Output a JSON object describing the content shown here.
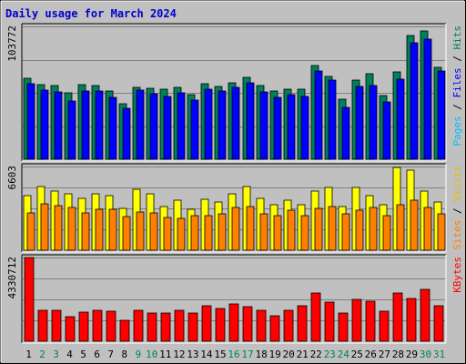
{
  "title": "Daily usage for March 2024",
  "colors": {
    "background": "#c0c0c0",
    "title": "#0000cc",
    "hits": "#00805c",
    "files": "#0000ff",
    "pages": "#00c0ff",
    "visits_label": "#e0c000",
    "sites": "#ff8000",
    "visits": "#ffff00",
    "kbytes": "#ff0000",
    "weekday_text": "#000000",
    "weekend_text": "#00805c",
    "grid": "#808080"
  },
  "chart_data": [
    {
      "type": "bar",
      "panel": "top",
      "max_label": "103772",
      "ylim": [
        0,
        103772
      ],
      "grid": true,
      "right_label_parts": [
        {
          "text": "Pages",
          "color_key": "pages"
        },
        {
          "text": " / ",
          "color_key": "weekday_text"
        },
        {
          "text": "Files",
          "color_key": "files"
        },
        {
          "text": " / ",
          "color_key": "weekday_text"
        },
        {
          "text": "Hits",
          "color_key": "hits"
        }
      ],
      "categories": [
        "1",
        "2",
        "3",
        "4",
        "5",
        "6",
        "7",
        "8",
        "9",
        "10",
        "11",
        "12",
        "13",
        "14",
        "15",
        "16",
        "17",
        "18",
        "19",
        "20",
        "21",
        "22",
        "23",
        "24",
        "25",
        "26",
        "27",
        "28",
        "29",
        "30",
        "31"
      ],
      "series": [
        {
          "name": "Hits",
          "color_key": "hits",
          "values": [
            63500,
            58500,
            57500,
            52000,
            58000,
            57500,
            53500,
            43500,
            56000,
            55500,
            54500,
            56000,
            50500,
            59000,
            57000,
            59500,
            64000,
            57500,
            53000,
            55000,
            54500,
            73500,
            65000,
            47000,
            61500,
            66500,
            50000,
            68000,
            96500,
            100000,
            71500
          ]
        },
        {
          "name": "Files",
          "color_key": "files",
          "values": [
            59000,
            54000,
            52500,
            45500,
            53500,
            53000,
            48000,
            39500,
            54000,
            51500,
            49000,
            52000,
            46500,
            55000,
            53500,
            56000,
            59500,
            52500,
            48500,
            50500,
            49000,
            69000,
            61500,
            40500,
            57000,
            57500,
            45000,
            62500,
            91000,
            94000,
            69000
          ]
        }
      ]
    },
    {
      "type": "bar",
      "panel": "middle",
      "max_label": "6603",
      "ylim": [
        0,
        6603
      ],
      "grid": true,
      "right_label_parts": [
        {
          "text": "Sites",
          "color_key": "sites"
        },
        {
          "text": " / ",
          "color_key": "weekday_text"
        },
        {
          "text": "Visits",
          "color_key": "visits_label"
        }
      ],
      "categories": [
        "1",
        "2",
        "3",
        "4",
        "5",
        "6",
        "7",
        "8",
        "9",
        "10",
        "11",
        "12",
        "13",
        "14",
        "15",
        "16",
        "17",
        "18",
        "19",
        "20",
        "21",
        "22",
        "23",
        "24",
        "25",
        "26",
        "27",
        "28",
        "29",
        "30",
        "31"
      ],
      "series": [
        {
          "name": "Visits",
          "color_key": "visits",
          "values": [
            4280,
            5020,
            4630,
            4420,
            4120,
            4420,
            4320,
            3320,
            4820,
            4420,
            3420,
            3930,
            3220,
            4020,
            3820,
            4420,
            5020,
            4120,
            3620,
            3930,
            3620,
            4630,
            4930,
            3420,
            4920,
            4320,
            3620,
            6550,
            6350,
            4630,
            3830
          ]
        },
        {
          "name": "Sites",
          "color_key": "sites",
          "values": [
            2950,
            3650,
            3520,
            3350,
            2950,
            3240,
            3250,
            2680,
            3050,
            2950,
            2570,
            2490,
            2750,
            2750,
            2860,
            3350,
            3450,
            2850,
            2760,
            3150,
            2740,
            3330,
            3450,
            2870,
            3150,
            3350,
            2750,
            3580,
            3950,
            3350,
            2850
          ]
        }
      ]
    },
    {
      "type": "bar",
      "panel": "bottom",
      "max_label": "4330712",
      "ylim": [
        0,
        4330712
      ],
      "grid": true,
      "right_label_parts": [
        {
          "text": "KBytes",
          "color_key": "kbytes"
        }
      ],
      "categories": [
        "1",
        "2",
        "3",
        "4",
        "5",
        "6",
        "7",
        "8",
        "9",
        "10",
        "11",
        "12",
        "13",
        "14",
        "15",
        "16",
        "17",
        "18",
        "19",
        "20",
        "21",
        "22",
        "23",
        "24",
        "25",
        "26",
        "27",
        "28",
        "29",
        "30",
        "31"
      ],
      "series": [
        {
          "name": "KBytes",
          "color_key": "kbytes",
          "values": [
            4330712,
            1610000,
            1610000,
            1250000,
            1500000,
            1610000,
            1560000,
            1060000,
            1610000,
            1480000,
            1450000,
            1610000,
            1460000,
            1840000,
            1710000,
            1930000,
            1770000,
            1600000,
            1310000,
            1580000,
            1840000,
            2500000,
            2020000,
            1450000,
            2150000,
            2080000,
            1560000,
            2500000,
            2220000,
            2670000,
            1840000
          ]
        }
      ]
    }
  ],
  "days": [
    "1",
    "2",
    "3",
    "4",
    "5",
    "6",
    "7",
    "8",
    "9",
    "10",
    "11",
    "12",
    "13",
    "14",
    "15",
    "16",
    "17",
    "18",
    "19",
    "20",
    "21",
    "22",
    "23",
    "24",
    "25",
    "26",
    "27",
    "28",
    "29",
    "30",
    "31"
  ],
  "weekend_days": [
    "2",
    "3",
    "9",
    "10",
    "16",
    "17",
    "23",
    "24",
    "30",
    "31"
  ]
}
